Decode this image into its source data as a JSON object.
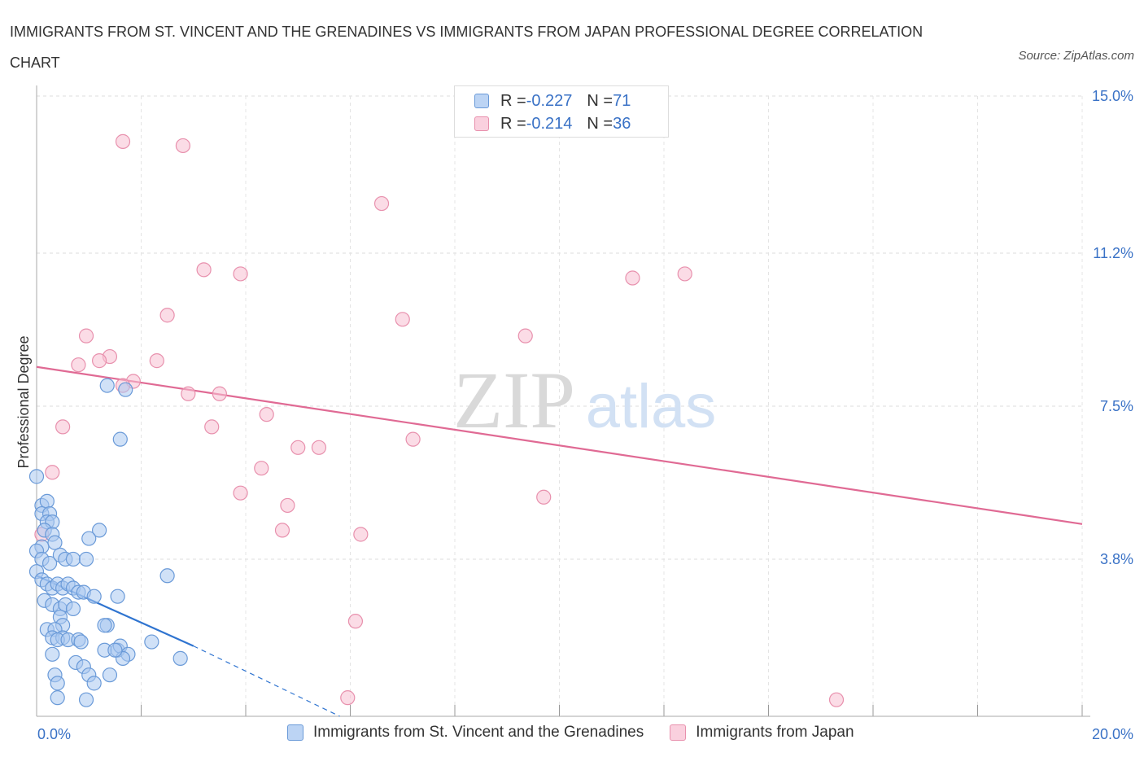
{
  "title": "IMMIGRANTS FROM ST. VINCENT AND THE GRENADINES VS IMMIGRANTS FROM JAPAN PROFESSIONAL DEGREE CORRELATION CHART",
  "source": "Source: ZipAtlas.com",
  "watermark": {
    "zip": "ZIP",
    "atlas": "atlas"
  },
  "colors": {
    "blue_fill": "#aac8f0",
    "blue_stroke": "#6a9ad8",
    "blue_line": "#2f74d0",
    "pink_fill": "#f7bfd1",
    "pink_stroke": "#e890ad",
    "pink_line": "#e06a94",
    "grid": "#dddddd",
    "axis_label": "#3a72c6"
  },
  "legend": {
    "rows": [
      {
        "r_label": "R = ",
        "r_value": "-0.227",
        "n_label": "N = ",
        "n_value": "71"
      },
      {
        "r_label": "R = ",
        "r_value": "-0.214",
        "n_label": "N = ",
        "n_value": "36"
      }
    ]
  },
  "chart_data": {
    "type": "scatter",
    "title": "IMMIGRANTS FROM ST. VINCENT AND THE GRENADINES VS IMMIGRANTS FROM JAPAN PROFESSIONAL DEGREE CORRELATION CHART",
    "xlabel": "",
    "ylabel": "Professional Degree",
    "xlim": [
      0,
      20
    ],
    "ylim": [
      0,
      15
    ],
    "x_tick_labels": [
      "0.0%",
      "20.0%"
    ],
    "y_ticks": [
      3.8,
      7.5,
      11.2,
      15.0
    ],
    "y_tick_labels": [
      "3.8%",
      "7.5%",
      "11.2%",
      "15.0%"
    ],
    "grid": true,
    "legend_position": "top-center",
    "series": [
      {
        "name": "Immigrants from St. Vincent and the Grenadines",
        "color": "#aac8f0",
        "r": -0.227,
        "n": 71,
        "trend": {
          "x": [
            0.0,
            3.0
          ],
          "y": [
            3.4,
            1.7
          ],
          "dashed_to": [
            5.8,
            0.0
          ]
        },
        "points": [
          [
            0.0,
            5.8
          ],
          [
            0.1,
            5.1
          ],
          [
            0.2,
            5.2
          ],
          [
            0.1,
            4.9
          ],
          [
            0.25,
            4.9
          ],
          [
            0.2,
            4.7
          ],
          [
            0.3,
            4.7
          ],
          [
            0.15,
            4.5
          ],
          [
            0.3,
            4.4
          ],
          [
            0.1,
            4.1
          ],
          [
            0.35,
            4.2
          ],
          [
            0.0,
            4.0
          ],
          [
            0.1,
            3.8
          ],
          [
            0.25,
            3.7
          ],
          [
            0.45,
            3.9
          ],
          [
            0.55,
            3.8
          ],
          [
            0.7,
            3.8
          ],
          [
            0.0,
            3.5
          ],
          [
            0.1,
            3.3
          ],
          [
            0.2,
            3.2
          ],
          [
            0.3,
            3.1
          ],
          [
            0.4,
            3.2
          ],
          [
            0.5,
            3.1
          ],
          [
            0.6,
            3.2
          ],
          [
            0.7,
            3.1
          ],
          [
            0.8,
            3.0
          ],
          [
            0.9,
            3.0
          ],
          [
            1.1,
            2.9
          ],
          [
            0.15,
            2.8
          ],
          [
            0.3,
            2.7
          ],
          [
            0.45,
            2.6
          ],
          [
            0.55,
            2.7
          ],
          [
            0.7,
            2.6
          ],
          [
            0.45,
            2.4
          ],
          [
            0.5,
            2.2
          ],
          [
            0.2,
            2.1
          ],
          [
            0.35,
            2.1
          ],
          [
            0.3,
            1.9
          ],
          [
            0.5,
            1.9
          ],
          [
            0.4,
            1.85
          ],
          [
            0.6,
            1.85
          ],
          [
            0.8,
            1.85
          ],
          [
            0.3,
            1.5
          ],
          [
            1.3,
            1.6
          ],
          [
            1.55,
            1.6
          ],
          [
            1.6,
            1.7
          ],
          [
            1.75,
            1.5
          ],
          [
            1.65,
            1.4
          ],
          [
            2.2,
            1.8
          ],
          [
            2.75,
            1.4
          ],
          [
            2.5,
            3.4
          ],
          [
            1.55,
            2.9
          ],
          [
            1.35,
            2.2
          ],
          [
            1.3,
            2.2
          ],
          [
            1.2,
            4.5
          ],
          [
            1.0,
            4.3
          ],
          [
            0.95,
            3.8
          ],
          [
            0.75,
            1.3
          ],
          [
            0.9,
            1.2
          ],
          [
            1.0,
            1.0
          ],
          [
            1.1,
            0.8
          ],
          [
            0.35,
            1.0
          ],
          [
            0.4,
            0.8
          ],
          [
            1.4,
            1.0
          ],
          [
            1.5,
            1.6
          ],
          [
            0.4,
            0.45
          ],
          [
            0.95,
            0.4
          ],
          [
            1.35,
            8.0
          ],
          [
            1.7,
            7.9
          ],
          [
            1.6,
            6.7
          ],
          [
            0.85,
            1.8
          ]
        ]
      },
      {
        "name": "Immigrants from Japan",
        "color": "#f7bfd1",
        "r": -0.214,
        "n": 36,
        "trend": {
          "x": [
            0.0,
            20.0
          ],
          "y": [
            8.45,
            4.65
          ]
        },
        "points": [
          [
            1.65,
            13.9
          ],
          [
            2.8,
            13.8
          ],
          [
            6.6,
            12.4
          ],
          [
            3.2,
            10.8
          ],
          [
            3.9,
            10.7
          ],
          [
            11.4,
            10.6
          ],
          [
            12.4,
            10.7
          ],
          [
            2.5,
            9.7
          ],
          [
            7.0,
            9.6
          ],
          [
            9.35,
            9.2
          ],
          [
            0.95,
            9.2
          ],
          [
            1.4,
            8.7
          ],
          [
            2.3,
            8.6
          ],
          [
            1.2,
            8.6
          ],
          [
            0.8,
            8.5
          ],
          [
            1.85,
            8.1
          ],
          [
            1.65,
            8.0
          ],
          [
            2.9,
            7.8
          ],
          [
            3.5,
            7.8
          ],
          [
            4.4,
            7.3
          ],
          [
            0.5,
            7.0
          ],
          [
            3.35,
            7.0
          ],
          [
            7.2,
            6.7
          ],
          [
            5.0,
            6.5
          ],
          [
            5.4,
            6.5
          ],
          [
            0.3,
            5.9
          ],
          [
            4.3,
            6.0
          ],
          [
            3.9,
            5.4
          ],
          [
            9.7,
            5.3
          ],
          [
            4.8,
            5.1
          ],
          [
            4.7,
            4.5
          ],
          [
            6.2,
            4.4
          ],
          [
            6.1,
            2.3
          ],
          [
            0.1,
            4.4
          ],
          [
            5.95,
            0.45
          ],
          [
            15.3,
            0.4
          ]
        ]
      }
    ]
  }
}
